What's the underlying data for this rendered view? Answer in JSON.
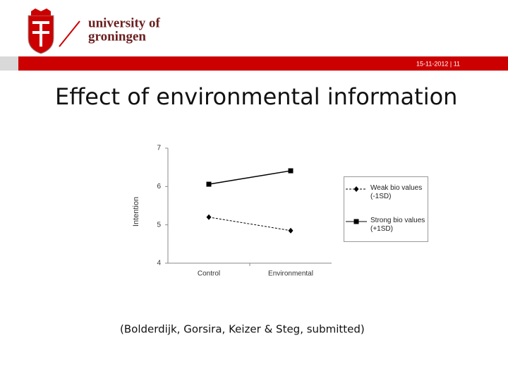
{
  "header": {
    "logo_line1": "university of",
    "logo_line2": "groningen",
    "slide_info": "15-11-2012 | 11"
  },
  "title": "Effect of environmental information",
  "chart_data": {
    "type": "line",
    "y_label": "Intention",
    "categories": [
      "Control",
      "Environmental"
    ],
    "series": [
      {
        "name": "Weak bio values (-1SD)",
        "color": "#000000",
        "marker": "diamond",
        "dashed": true,
        "values": [
          5.2,
          4.85
        ]
      },
      {
        "name": "Strong bio values (+1SD)",
        "color": "#000000",
        "marker": "square",
        "dashed": false,
        "values": [
          6.06,
          6.41
        ]
      }
    ],
    "ylim": [
      4,
      7
    ],
    "yticks": [
      4,
      5,
      6,
      7
    ]
  },
  "citation": "(Bolderdijk, Gorsira, Keizer & Steg, submitted)"
}
